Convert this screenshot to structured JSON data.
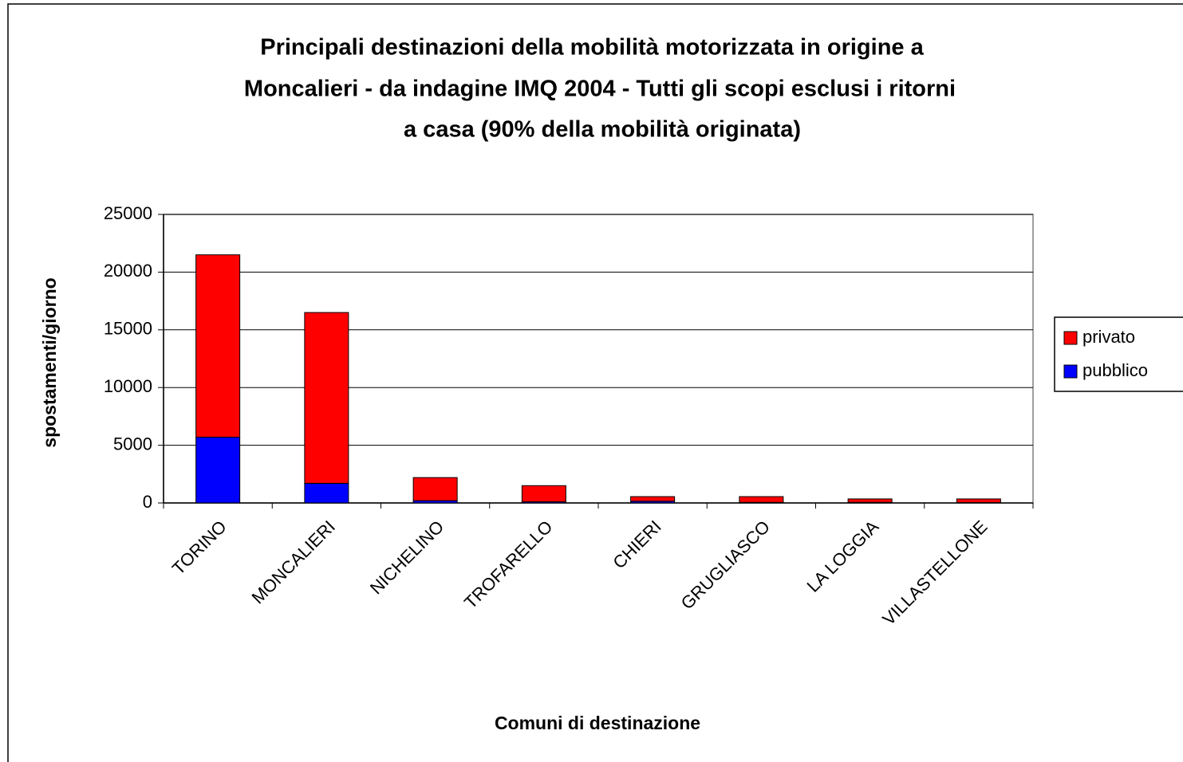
{
  "chart_data": {
    "type": "bar",
    "stacked": true,
    "title": [
      "Principali destinazioni della mobilità motorizzata in origine a",
      "Moncalieri - da indagine IMQ 2004 - Tutti gli scopi esclusi i ritorni",
      "a casa (90% della mobilità originata)"
    ],
    "xlabel": "Comuni di destinazione",
    "ylabel": "spostamenti/giorno",
    "categories": [
      "TORINO",
      "MONCALIERI",
      "NICHELINO",
      "TROFARELLO",
      "CHIERI",
      "GRUGLIASCO",
      "LA LOGGIA",
      "VILLASTELLONE"
    ],
    "series": [
      {
        "name": "pubblico",
        "color": "#0000ff",
        "values": [
          5700,
          1700,
          200,
          100,
          150,
          50,
          50,
          30
        ]
      },
      {
        "name": "privato",
        "color": "#ff0000",
        "values": [
          15800,
          14800,
          2000,
          1400,
          400,
          500,
          300,
          320
        ]
      }
    ],
    "ylim": [
      0,
      25000
    ],
    "yticks": [
      0,
      5000,
      10000,
      15000,
      20000,
      25000
    ],
    "grid": true,
    "legend": "right"
  }
}
